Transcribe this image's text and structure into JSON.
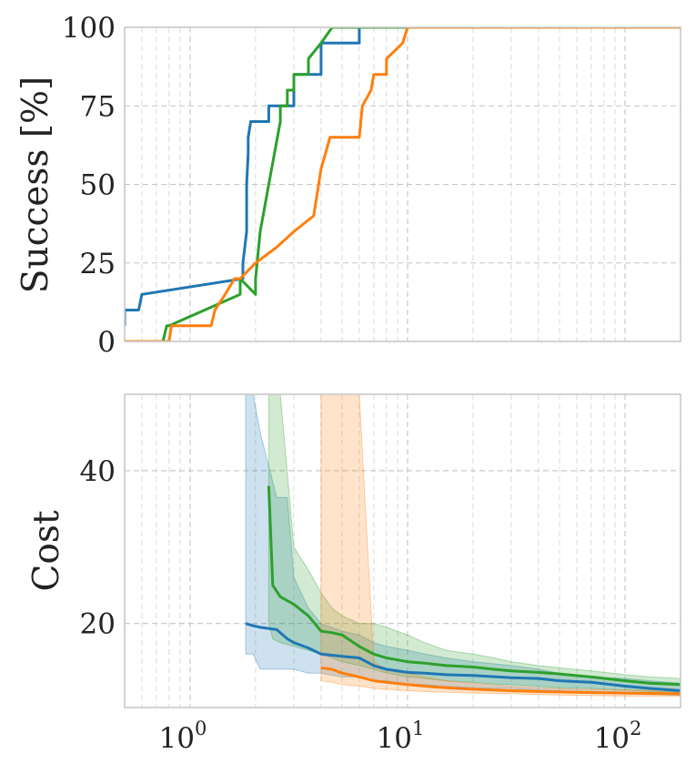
{
  "chart_data": [
    {
      "type": "line",
      "ylabel": "Success [%]",
      "xscale": "log",
      "xlim": [
        0.5,
        180
      ],
      "ylim": [
        0,
        100
      ],
      "yticks": [
        "0",
        "25",
        "50",
        "75",
        "100"
      ],
      "grid": true,
      "series": [
        {
          "color": "#1f77b4",
          "x": [
            0.5,
            0.5,
            0.58,
            0.6,
            0.6,
            1.75,
            1.75,
            1.82,
            1.82,
            1.85,
            1.85,
            1.9,
            2.0,
            2.0,
            2.2,
            2.3,
            2.3,
            2.6,
            2.6,
            3.0,
            3.0,
            3.8,
            3.8,
            4.0,
            4.0,
            5.0,
            5.0,
            6.0,
            6.0,
            6.8,
            180
          ],
          "y": [
            5,
            10,
            10,
            15,
            15,
            20,
            25,
            35,
            50,
            60,
            65,
            70,
            70,
            70,
            70,
            70,
            75,
            75,
            75,
            75,
            85,
            85,
            85,
            85,
            95,
            95,
            95,
            95,
            100,
            100,
            100
          ]
        },
        {
          "color": "#2ca02c",
          "x": [
            0.5,
            0.75,
            0.78,
            0.8,
            0.8,
            1.7,
            1.7,
            2.0,
            2.0,
            2.1,
            2.3,
            2.6,
            2.6,
            2.8,
            2.8,
            3.0,
            3.0,
            3.5,
            3.5,
            4.0,
            4.5,
            180
          ],
          "y": [
            0,
            0,
            5,
            5,
            5,
            15,
            20,
            15,
            20,
            35,
            50,
            70,
            75,
            75,
            80,
            80,
            85,
            85,
            90,
            95,
            100,
            100
          ]
        },
        {
          "color": "#ff7f0e",
          "x": [
            0.5,
            0.8,
            0.82,
            0.85,
            1.25,
            1.3,
            1.45,
            1.6,
            1.7,
            1.7,
            2.0,
            2.0,
            2.5,
            2.5,
            3.0,
            3.0,
            3.7,
            3.8,
            4.0,
            4.2,
            4.4,
            6.0,
            6.2,
            6.8,
            7.0,
            8.0,
            8.0,
            9.5,
            10.0,
            180
          ],
          "y": [
            0,
            0,
            5,
            5,
            5,
            10,
            15,
            20,
            20,
            20,
            25,
            25,
            30,
            30,
            35,
            35,
            40,
            45,
            55,
            60,
            65,
            65,
            75,
            80,
            85,
            85,
            90,
            95,
            100,
            100
          ]
        }
      ]
    },
    {
      "type": "line",
      "ylabel": "Cost",
      "xscale": "log",
      "xlim": [
        0.5,
        180
      ],
      "ylim": [
        9,
        50
      ],
      "xticks": [
        {
          "base": "10",
          "exp": "0",
          "value": 1
        },
        {
          "base": "10",
          "exp": "1",
          "value": 10
        },
        {
          "base": "10",
          "exp": "2",
          "value": 100
        }
      ],
      "yticks": [
        "20",
        "40"
      ],
      "grid": true,
      "series": [
        {
          "color": "#1f77b4",
          "x": [
            1.8,
            1.95,
            2.1,
            2.5,
            2.8,
            3.0,
            3.5,
            4.0,
            5.0,
            6.0,
            7.0,
            8.0,
            10.0,
            12.0,
            15.0,
            20.0,
            30.0,
            40.0,
            50.0,
            70.0,
            100.0,
            130.0,
            180.0
          ],
          "y": [
            20,
            19.7,
            19.5,
            19.2,
            18.0,
            17.5,
            16.8,
            16.0,
            15.7,
            15.5,
            14.5,
            14.0,
            13.6,
            13.5,
            13.3,
            13.2,
            12.9,
            12.8,
            12.5,
            12.3,
            11.8,
            11.5,
            11.2
          ],
          "band_upper": [
            50,
            50,
            45,
            36.5,
            36.5,
            26,
            22,
            20,
            19,
            18.5,
            17.5,
            17,
            16.5,
            16,
            15.5,
            15,
            14.5,
            14,
            13.5,
            13,
            12.8,
            12.5,
            12.2
          ],
          "band_lower": [
            16,
            16,
            14,
            14,
            14,
            14,
            13.5,
            13.5,
            13,
            13,
            12.5,
            12.5,
            12,
            12,
            11.8,
            11.6,
            11.5,
            11.3,
            11.2,
            11,
            10.8,
            10.7,
            10.6
          ]
        },
        {
          "color": "#2ca02c",
          "x": [
            2.3,
            2.4,
            2.6,
            3.0,
            3.5,
            4.0,
            4.5,
            5.0,
            6.0,
            7.0,
            8.0,
            10.0,
            12.0,
            15.0,
            20.0,
            25.0,
            30.0,
            40.0,
            50.0,
            70.0,
            100.0,
            130.0,
            180.0
          ],
          "y": [
            38,
            25,
            23.5,
            22.5,
            21,
            19,
            18.8,
            18.5,
            17,
            16,
            15.5,
            15,
            14.8,
            14.5,
            14.3,
            14,
            13.8,
            13.6,
            13.4,
            13,
            12.5,
            12.2,
            12
          ],
          "band_upper": [
            50,
            50,
            50,
            30,
            27,
            24,
            22,
            21,
            20,
            20,
            19.5,
            18.5,
            17.5,
            16.5,
            16,
            15.5,
            15,
            14.5,
            14.2,
            13.8,
            13.3,
            13,
            12.8
          ],
          "band_lower": [
            20,
            18,
            17.5,
            17,
            16.5,
            16,
            15.5,
            15,
            14.5,
            14,
            13.5,
            13,
            12.8,
            12.5,
            12.3,
            12.1,
            12,
            11.8,
            11.6,
            11.5,
            11.3,
            11.1,
            11
          ]
        },
        {
          "color": "#ff7f0e",
          "x": [
            4.0,
            4.5,
            5.0,
            6.0,
            7.0,
            8.0,
            10.0,
            12.0,
            15.0,
            20.0,
            30.0,
            40.0,
            60.0,
            100.0,
            180.0
          ],
          "y": [
            14.2,
            14,
            13.5,
            13,
            12.5,
            12.3,
            12,
            11.8,
            11.6,
            11.4,
            11.2,
            11.1,
            11,
            10.9,
            10.8
          ],
          "band_upper": [
            50,
            50,
            50,
            50,
            15,
            14,
            13.5,
            13,
            12.5,
            12.2,
            11.8,
            11.6,
            11.4,
            11.3,
            11.2
          ],
          "band_lower": [
            12.5,
            12.3,
            12,
            11.8,
            11.5,
            11.4,
            11.2,
            11.1,
            11,
            10.9,
            10.8,
            10.7,
            10.6,
            10.5,
            10.5
          ]
        }
      ]
    }
  ]
}
